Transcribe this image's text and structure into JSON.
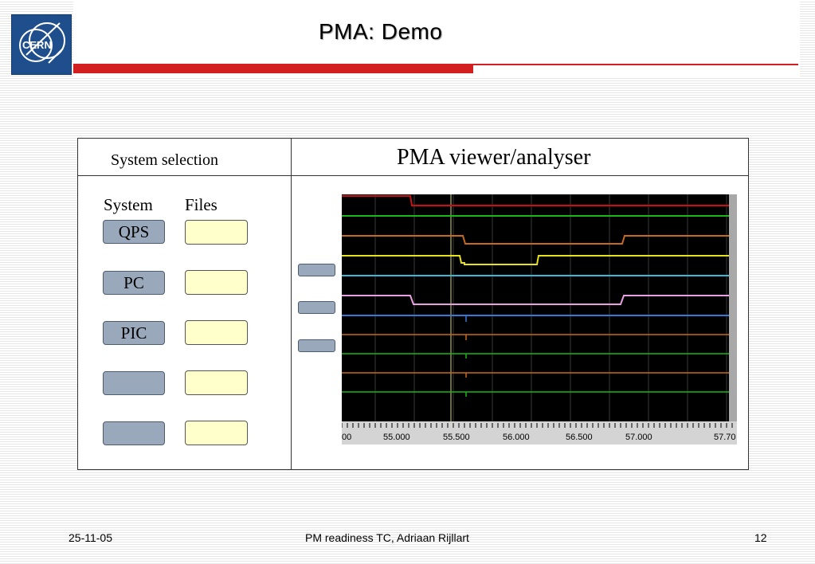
{
  "slide": {
    "title": "PMA: Demo",
    "logo_text": "CERN"
  },
  "panel": {
    "left_header": "System selection",
    "right_header": "PMA viewer/analyser",
    "column_system": "System",
    "column_files": "Files",
    "systems": [
      "QPS",
      "PC",
      "PIC",
      "",
      ""
    ]
  },
  "plot": {
    "x_ticks": [
      "00",
      "55.000",
      "55.500",
      "56.000",
      "56.500",
      "57.000",
      "57.70"
    ],
    "colors": {
      "background": "#000000",
      "red": "#cc1010",
      "green": "#18b818",
      "orange": "#c86a1e",
      "yellow": "#e8e21a",
      "cyan": "#3ab8d8",
      "pink": "#e8a0e0",
      "blue": "#3a78d8"
    }
  },
  "footer": {
    "date": "25-11-05",
    "center": "PM readiness TC, Adriaan Rijllart",
    "page": "12"
  },
  "colors": {
    "accent_red": "#d31f1f",
    "logo_blue": "#1f4e8c",
    "system_button": "#9aa8bb",
    "file_button": "#ffffcc"
  }
}
